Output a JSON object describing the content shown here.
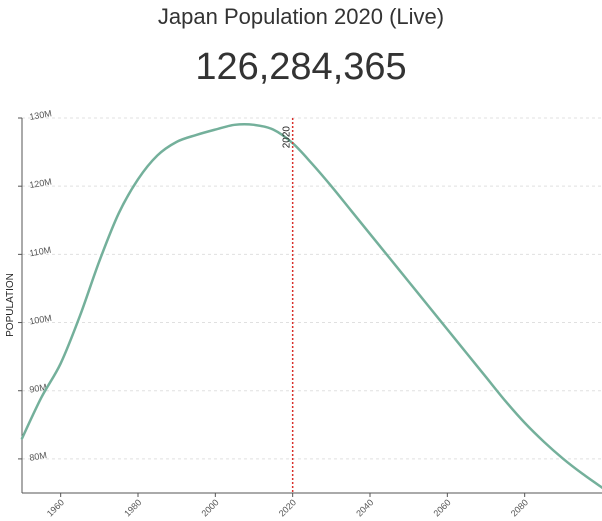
{
  "header": {
    "title": "Japan Population 2020 (Live)",
    "live_count": "126,284,365"
  },
  "colors": {
    "line": "#74b09b",
    "marker": "#d9302c",
    "grid": "#e0e0e0",
    "axis": "#555555"
  },
  "chart_data": {
    "type": "line",
    "title": "Japan Population 2020 (Live)",
    "xlabel": "",
    "ylabel": "POPULATION",
    "xlim": [
      1950,
      2100
    ],
    "ylim": [
      75,
      130
    ],
    "x_ticks": [
      1960,
      1980,
      2000,
      2020,
      2040,
      2060,
      2080
    ],
    "x_tick_labels": [
      "1960",
      "1980",
      "2000",
      "2020",
      "2040",
      "2060",
      "2080"
    ],
    "y_ticks": [
      80,
      90,
      100,
      110,
      120,
      130
    ],
    "y_tick_labels": [
      "80M",
      "90M",
      "100M",
      "110M",
      "120M",
      "130M"
    ],
    "grid": "horizontal-dashed",
    "marker": {
      "x": 2020,
      "label": "2020"
    },
    "series": [
      {
        "x": [
          1950,
          1955,
          1960,
          1965,
          1970,
          1975,
          1980,
          1985,
          1990,
          1995,
          2000,
          2005,
          2010,
          2015,
          2020,
          2025,
          2030,
          2035,
          2040,
          2045,
          2050,
          2055,
          2060,
          2065,
          2070,
          2075,
          2080,
          2085,
          2090,
          2095,
          2100
        ],
        "values": [
          83,
          89,
          94,
          101,
          109,
          116,
          121,
          124.5,
          126.5,
          127.5,
          128.3,
          129,
          129,
          128.3,
          126.3,
          123.3,
          120,
          116.5,
          113,
          109.5,
          106,
          102.5,
          99,
          95.5,
          92,
          88.5,
          85.3,
          82.5,
          80,
          77.8,
          75.8
        ]
      }
    ]
  }
}
